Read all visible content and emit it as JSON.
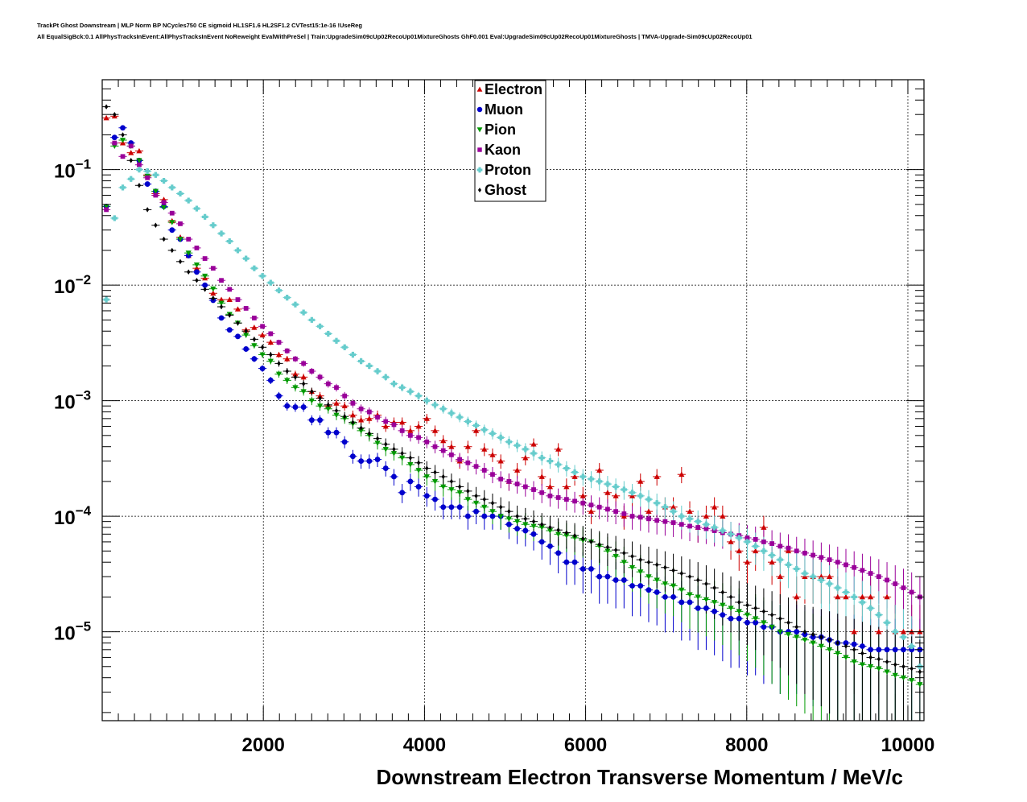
{
  "header": {
    "line1": "TrackPt Ghost Downstream | MLP Norm BP NCycles750 CE sigmoid HL1SF1.6 HL2SF1.2 CVTest15:1e-16 !UseReg",
    "line2": "All EqualSigBck:0.1 AllPhysTracksInEvent:AllPhysTracksInEvent NoReweight EvalWithPreSel | Train:UpgradeSim09cUp02RecoUp01MixtureGhosts GhF0.001 Eval:UpgradeSim09cUp02RecoUp01MixtureGhosts | TMVA-Upgrade-Sim09cUp02RecoUp01"
  },
  "chart_data": {
    "type": "scatter",
    "xlabel": "Downstream Electron Transverse Momentum / MeV/c",
    "ylabel": "",
    "xlim": [
      0,
      10200
    ],
    "ylim": [
      1.7e-06,
      0.6
    ],
    "log_y": true,
    "grid": true,
    "legend_position": "top-center",
    "x_ticks": [
      "2000",
      "4000",
      "6000",
      "8000",
      "10000"
    ],
    "y_ticks": [
      {
        "base": "10",
        "exp": "−1",
        "value": 0.1
      },
      {
        "base": "10",
        "exp": "−2",
        "value": 0.01
      },
      {
        "base": "10",
        "exp": "−3",
        "value": 0.001
      },
      {
        "base": "10",
        "exp": "−4",
        "value": 0.0001
      },
      {
        "base": "10",
        "exp": "−5",
        "value": 1e-05
      }
    ],
    "bin_width": 102,
    "bins_x_start": 51,
    "series": [
      {
        "name": "Electron",
        "color": "#cc0000",
        "marker": "triangle-up",
        "values": [
          0.28,
          0.29,
          0.17,
          0.14,
          0.145,
          0.09,
          0.062,
          0.055,
          0.036,
          0.026,
          0.018,
          0.014,
          0.0115,
          0.0085,
          0.0075,
          0.0075,
          0.0062,
          0.0041,
          0.0043,
          0.0037,
          0.0032,
          0.0025,
          0.0023,
          0.0017,
          0.0016,
          0.0012,
          0.0011,
          0.0009,
          0.00095,
          0.0009,
          0.00075,
          0.00068,
          0.0007,
          0.00075,
          0.0006,
          0.00065,
          0.00065,
          0.00055,
          0.0006,
          0.0007,
          0.00055,
          0.00045,
          0.0004,
          0.0003,
          0.0004,
          0.00055,
          0.00038,
          0.00034,
          0.0003,
          0.0002,
          0.00025,
          0.00032,
          0.00042,
          0.00022,
          0.00018,
          0.00038,
          0.00018,
          0.00022,
          0.00015,
          0.00011,
          0.00025,
          0.00016,
          0.00015,
          0.0001,
          0.00015,
          0.0002,
          0.00011,
          0.00022,
          0.00012,
          0.00012,
          0.00023,
          0.00011,
          8e-05,
          0.0001,
          0.00012,
          0.0001,
          6e-05,
          5e-05,
          4e-05,
          5e-05,
          8e-05,
          4e-05,
          3e-05,
          5e-05,
          2e-05,
          3e-05,
          3e-05,
          3e-05,
          3e-05,
          2e-05,
          2e-05,
          1e-05,
          2e-05,
          2e-05,
          1e-05,
          2e-05,
          1e-05,
          1e-05,
          1e-05,
          1e-05
        ]
      },
      {
        "name": "Muon",
        "color": "#0000cc",
        "marker": "circle",
        "values": [
          0.048,
          0.19,
          0.23,
          0.17,
          0.12,
          0.075,
          0.065,
          0.048,
          0.03,
          0.025,
          0.018,
          0.013,
          0.01,
          0.0074,
          0.0052,
          0.0041,
          0.0036,
          0.0028,
          0.0023,
          0.0019,
          0.0015,
          0.0011,
          0.0009,
          0.00088,
          0.00088,
          0.00068,
          0.00068,
          0.00053,
          0.00053,
          0.00044,
          0.00033,
          0.0003,
          0.0003,
          0.00031,
          0.00026,
          0.00022,
          0.00016,
          0.0002,
          0.00018,
          0.00015,
          0.00014,
          0.00012,
          0.00012,
          0.00012,
          0.0001,
          0.00011,
          0.0001,
          0.0001,
          0.0001,
          8.5e-05,
          7.8e-05,
          7.5e-05,
          7e-05,
          6e-05,
          5.5e-05,
          4.8e-05,
          4e-05,
          4e-05,
          3.5e-05,
          3.5e-05,
          3e-05,
          3e-05,
          2.8e-05,
          2.8e-05,
          2.5e-05,
          2.5e-05,
          2.3e-05,
          2.2e-05,
          2e-05,
          2e-05,
          1.8e-05,
          1.8e-05,
          1.6e-05,
          1.6e-05,
          1.5e-05,
          1.4e-05,
          1.3e-05,
          1.3e-05,
          1.2e-05,
          1.2e-05,
          1.1e-05,
          1.1e-05,
          1e-05,
          1e-05,
          1e-05,
          9.5e-06,
          9e-06,
          9e-06,
          8.5e-06,
          8e-06,
          8e-06,
          7.8e-06,
          7.5e-06,
          7e-06,
          7e-06,
          7e-06,
          7e-06,
          7e-06,
          7e-06,
          7e-06
        ]
      },
      {
        "name": "Pion",
        "color": "#009900",
        "marker": "triangle-down",
        "values": [
          0.048,
          0.16,
          0.18,
          0.16,
          0.12,
          0.088,
          0.065,
          0.047,
          0.035,
          0.025,
          0.019,
          0.015,
          0.012,
          0.0093,
          0.007,
          0.0056,
          0.0047,
          0.0037,
          0.003,
          0.0025,
          0.0022,
          0.0017,
          0.0015,
          0.0013,
          0.0012,
          0.001,
          0.0009,
          0.00085,
          0.00075,
          0.0007,
          0.00063,
          0.00055,
          0.0005,
          0.00043,
          0.00038,
          0.00035,
          0.00032,
          0.00028,
          0.00025,
          0.00022,
          0.0002,
          0.00018,
          0.00017,
          0.00016,
          0.00014,
          0.00013,
          0.00012,
          0.00011,
          0.0001,
          9.5e-05,
          9e-05,
          8.5e-05,
          8.2e-05,
          8e-05,
          7.5e-05,
          7e-05,
          6.8e-05,
          6.5e-05,
          6.2e-05,
          6e-05,
          5.5e-05,
          5e-05,
          4.5e-05,
          4e-05,
          3.6e-05,
          3.3e-05,
          3e-05,
          2.8e-05,
          2.6e-05,
          2.5e-05,
          2.3e-05,
          2.1e-05,
          2e-05,
          1.9e-05,
          1.8e-05,
          1.7e-05,
          1.6e-05,
          1.5e-05,
          1.4e-05,
          1.3e-05,
          1.2e-05,
          1.1e-05,
          1e-05,
          9.5e-06,
          9e-06,
          8.5e-06,
          8e-06,
          7.5e-06,
          7e-06,
          6.5e-06,
          6e-06,
          5.5e-06,
          5.2e-06,
          5e-06,
          4.8e-06,
          4.5e-06,
          4.2e-06,
          4e-06,
          3.8e-06,
          3.5e-06
        ]
      },
      {
        "name": "Kaon",
        "color": "#990099",
        "marker": "square",
        "values": [
          0.045,
          0.17,
          0.13,
          0.16,
          0.11,
          0.085,
          0.06,
          0.052,
          0.042,
          0.034,
          0.025,
          0.021,
          0.017,
          0.014,
          0.011,
          0.0092,
          0.0075,
          0.0063,
          0.0052,
          0.0044,
          0.0038,
          0.0032,
          0.0027,
          0.0023,
          0.0021,
          0.0018,
          0.0016,
          0.0014,
          0.0013,
          0.0011,
          0.00095,
          0.00085,
          0.0008,
          0.00072,
          0.00066,
          0.00062,
          0.00055,
          0.0005,
          0.00048,
          0.00044,
          0.0004,
          0.00037,
          0.00034,
          0.00031,
          0.00029,
          0.00027,
          0.00025,
          0.00023,
          0.00021,
          0.0002,
          0.00019,
          0.00018,
          0.00017,
          0.00016,
          0.00015,
          0.000145,
          0.00014,
          0.000135,
          0.00013,
          0.000125,
          0.00012,
          0.000115,
          0.00011,
          0.000105,
          0.0001,
          9.8e-05,
          9.5e-05,
          9.2e-05,
          9e-05,
          8.8e-05,
          8.5e-05,
          8.2e-05,
          8e-05,
          7.8e-05,
          7.5e-05,
          7.2e-05,
          7e-05,
          6.8e-05,
          6.5e-05,
          6.3e-05,
          6e-05,
          5.8e-05,
          5.5e-05,
          5.3e-05,
          5e-05,
          4.8e-05,
          4.6e-05,
          4.4e-05,
          4.2e-05,
          4e-05,
          3.8e-05,
          3.6e-05,
          3.4e-05,
          3.2e-05,
          3e-05,
          2.8e-05,
          2.6e-05,
          2.4e-05,
          2.2e-05,
          2e-05
        ]
      },
      {
        "name": "Proton",
        "color": "#66cccc",
        "marker": "cross",
        "values": [
          0.0075,
          0.038,
          0.07,
          0.083,
          0.1,
          0.097,
          0.09,
          0.08,
          0.07,
          0.062,
          0.054,
          0.046,
          0.039,
          0.033,
          0.028,
          0.024,
          0.02,
          0.017,
          0.014,
          0.012,
          0.0105,
          0.009,
          0.0078,
          0.0068,
          0.0058,
          0.005,
          0.0044,
          0.0038,
          0.0033,
          0.0029,
          0.0025,
          0.0022,
          0.002,
          0.0018,
          0.0016,
          0.0014,
          0.0013,
          0.0012,
          0.0011,
          0.001,
          0.00092,
          0.00085,
          0.00078,
          0.00072,
          0.00066,
          0.00061,
          0.00056,
          0.00052,
          0.00048,
          0.00044,
          0.00041,
          0.00038,
          0.00035,
          0.00032,
          0.0003,
          0.00028,
          0.00026,
          0.00024,
          0.00022,
          0.00021,
          0.0002,
          0.00019,
          0.00018,
          0.00017,
          0.00016,
          0.00015,
          0.00014,
          0.00013,
          0.00012,
          0.00011,
          0.0001,
          9.5e-05,
          9e-05,
          8.5e-05,
          8e-05,
          7.5e-05,
          7e-05,
          6.5e-05,
          6e-05,
          5.5e-05,
          5e-05,
          4.6e-05,
          4.2e-05,
          3.8e-05,
          3.5e-05,
          3.2e-05,
          3e-05,
          2.8e-05,
          2.6e-05,
          2.4e-05,
          2.2e-05,
          2e-05,
          1.8e-05,
          1.6e-05,
          1.4e-05,
          1.2e-05,
          1e-05,
          9e-06,
          7.5e-06,
          5e-06
        ]
      },
      {
        "name": "Ghost",
        "color": "#000000",
        "marker": "diamond",
        "values": [
          0.35,
          0.3,
          0.2,
          0.12,
          0.073,
          0.045,
          0.033,
          0.025,
          0.02,
          0.016,
          0.013,
          0.011,
          0.0092,
          0.0077,
          0.0065,
          0.0055,
          0.0047,
          0.004,
          0.0034,
          0.0029,
          0.0025,
          0.0021,
          0.0018,
          0.0016,
          0.0014,
          0.0012,
          0.00105,
          0.00092,
          0.00082,
          0.00073,
          0.00065,
          0.00058,
          0.00052,
          0.00047,
          0.00042,
          0.00038,
          0.00035,
          0.00032,
          0.00029,
          0.00026,
          0.00024,
          0.00022,
          0.0002,
          0.00018,
          0.000165,
          0.00015,
          0.00014,
          0.00013,
          0.00012,
          0.00011,
          0.0001,
          9.5e-05,
          9e-05,
          8.5e-05,
          8e-05,
          7.6e-05,
          7.2e-05,
          6.8e-05,
          6.4e-05,
          6e-05,
          5.7e-05,
          5.4e-05,
          5.1e-05,
          4.8e-05,
          4.5e-05,
          4.2e-05,
          4e-05,
          3.8e-05,
          3.6e-05,
          3.4e-05,
          3.2e-05,
          3e-05,
          2.8e-05,
          2.6e-05,
          2.4e-05,
          2.2e-05,
          2e-05,
          1.8e-05,
          1.7e-05,
          1.6e-05,
          1.5e-05,
          1.4e-05,
          1.3e-05,
          1.2e-05,
          1.1e-05,
          1e-05,
          9.5e-06,
          9e-06,
          8.5e-06,
          8e-06,
          7.5e-06,
          7e-06,
          6.5e-06,
          6e-06,
          5.8e-06,
          5.5e-06,
          5.2e-06,
          5e-06,
          4.8e-06,
          4.5e-06
        ]
      }
    ]
  }
}
